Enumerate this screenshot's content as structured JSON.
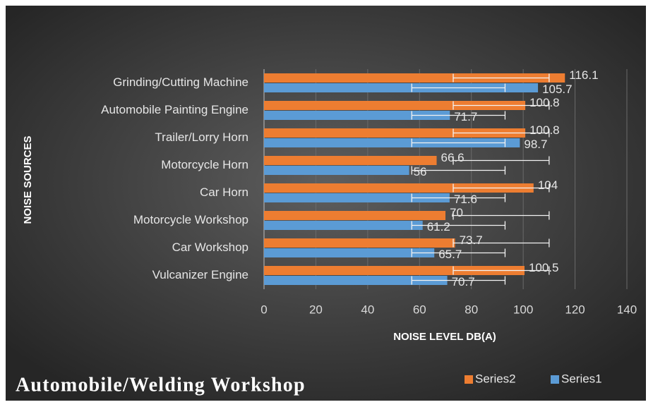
{
  "chart_data": {
    "type": "hbar",
    "title": "Automobile/Welding Workshop",
    "x_label": "NOISE LEVEL DB(A)",
    "y_label": "NOISE SOURCES",
    "categories": [
      "Vulcanizer Engine",
      "Car Workshop",
      "Motorcycle Workshop",
      "Car Horn",
      "Motorcycle Horn",
      "Trailer/Lorry Horn",
      "Automobile Painting Engine",
      "Grinding/Cutting Machine"
    ],
    "series": [
      {
        "name": "Series1",
        "color": "#5b9bd5",
        "values": [
          70.7,
          65.7,
          61.2,
          71.6,
          56,
          98.7,
          71.7,
          105.7
        ],
        "error_bar": [
          57,
          93
        ]
      },
      {
        "name": "Series2",
        "color": "#ed7d31",
        "values": [
          100.5,
          73.7,
          70,
          104,
          66.6,
          100.8,
          100.8,
          116.1
        ],
        "error_bar": [
          73,
          110
        ]
      }
    ],
    "xlim": [
      0,
      140
    ],
    "xticks": [
      0,
      20,
      40,
      60,
      80,
      100,
      120,
      140
    ],
    "grid": true,
    "legend": "bottom-right"
  }
}
